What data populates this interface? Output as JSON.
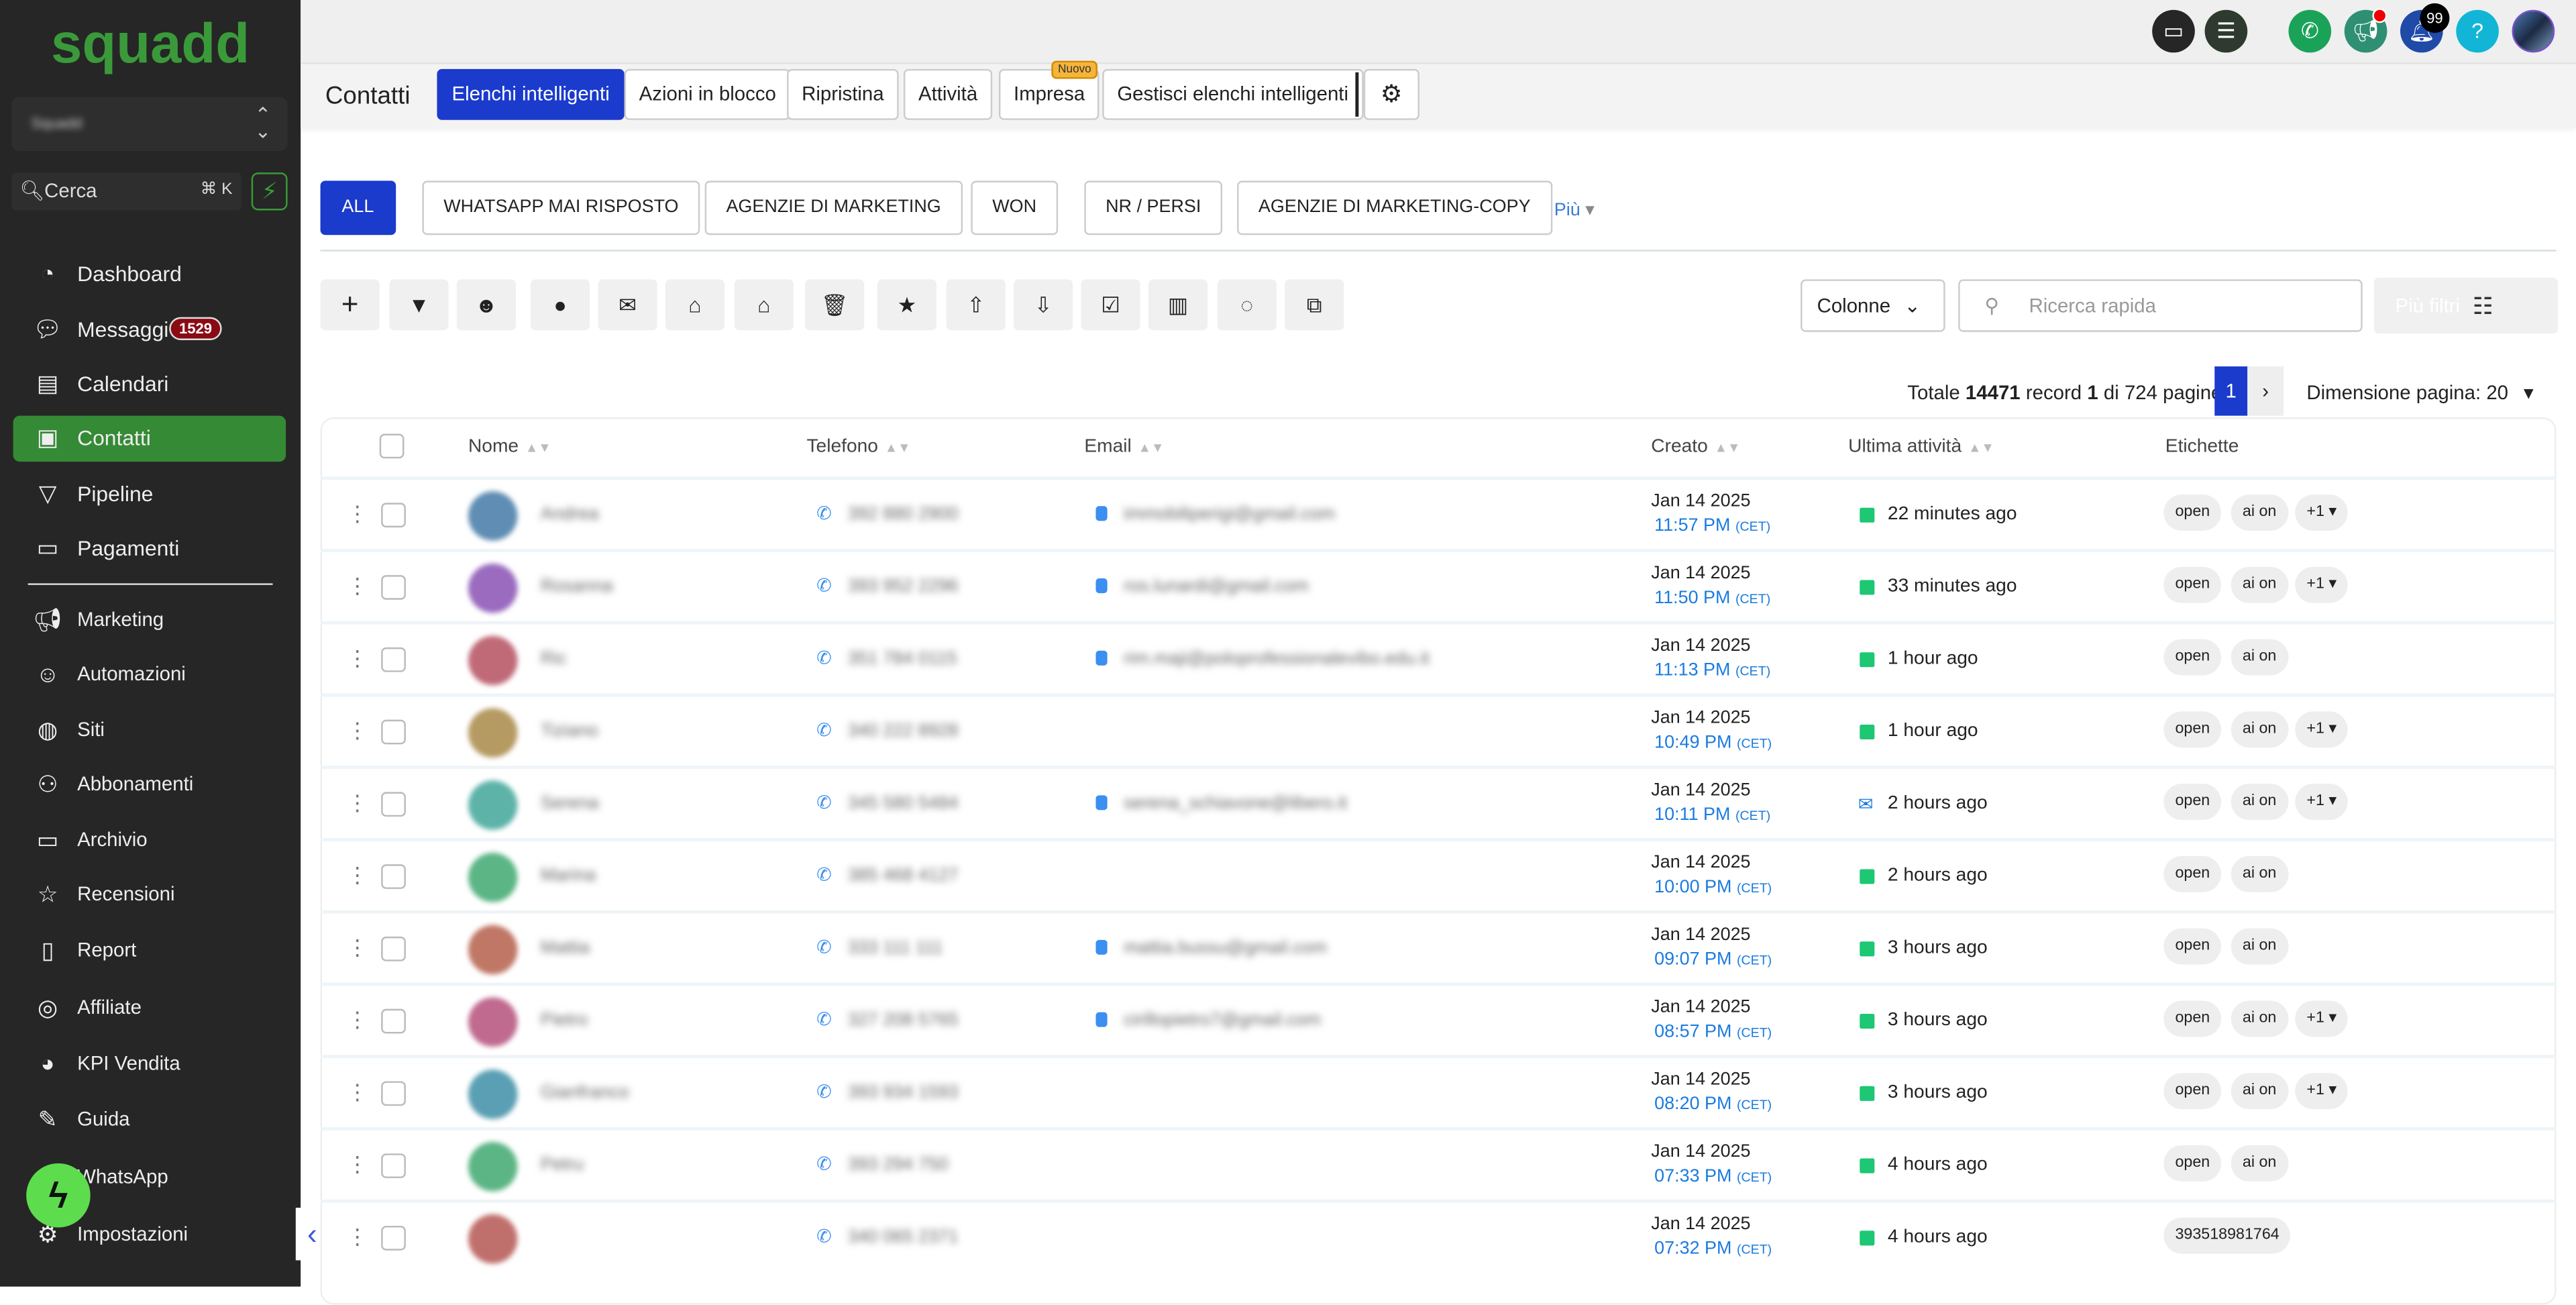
{
  "sidebar": {
    "logo": "squadd",
    "account": "Squadd",
    "search_label": "Cerca",
    "search_shortcut": "⌘ K",
    "items": [
      {
        "label": "Dashboard",
        "icon": "gauge-icon"
      },
      {
        "label": "Messaggi",
        "icon": "chat-bubbles-icon",
        "badge": "1529"
      },
      {
        "label": "Calendari",
        "icon": "calendar-icon"
      },
      {
        "label": "Contatti",
        "icon": "contact-book-icon",
        "active": true
      },
      {
        "label": "Pipeline",
        "icon": "funnel-icon"
      },
      {
        "label": "Pagamenti",
        "icon": "credit-card-icon"
      },
      {
        "label": "Marketing",
        "icon": "megaphone-icon"
      },
      {
        "label": "Automazioni",
        "icon": "robot-icon"
      },
      {
        "label": "Siti",
        "icon": "globe-icon"
      },
      {
        "label": "Abbonamenti",
        "icon": "users-icon"
      },
      {
        "label": "Archivio",
        "icon": "archive-icon"
      },
      {
        "label": "Recensioni",
        "icon": "star-icon"
      },
      {
        "label": "Report",
        "icon": "report-icon"
      },
      {
        "label": "Affiliate",
        "icon": "coins-icon"
      },
      {
        "label": "KPI Vendita",
        "icon": "pie-chart-icon"
      },
      {
        "label": "Guida",
        "icon": "reader-icon"
      },
      {
        "label": "WhatsApp",
        "icon": "whatsapp-icon"
      },
      {
        "label": "Impostazioni",
        "icon": "gear-icon"
      }
    ]
  },
  "topbar": {
    "notifications_count": "99",
    "brand_colors": {
      "green": "#3a9a3a",
      "primary": "#1a3bcc"
    }
  },
  "header": {
    "title": "Contatti",
    "tabs": [
      "Elenchi intelligenti",
      "Azioni in blocco",
      "Ripristina",
      "Attività",
      "Impresa",
      "Gestisci elenchi intelligenti"
    ],
    "new_badge": "Nuovo"
  },
  "smart_lists": {
    "items": [
      "ALL",
      "WHATSAPP MAI RISPOSTO",
      "AGENZIE DI MARKETING",
      "WON",
      "NR / PERSI",
      "AGENZIE DI MARKETING-COPY"
    ],
    "more": "Più"
  },
  "toolbar": {
    "icons": [
      "plus-icon",
      "filter-icon",
      "robot-icon",
      "chat-icon",
      "envelope-icon",
      "tag-add-icon",
      "tag-remove-icon",
      "trash-icon",
      "star-icon",
      "upload-icon",
      "download-icon",
      "inbox-check-icon",
      "building-icon",
      "whatsapp-icon",
      "copy-icon"
    ],
    "columns_label": "Colonne",
    "search_placeholder": "Ricerca rapida",
    "more_filters": "Più filtri"
  },
  "pagination": {
    "prefix": "Totale",
    "total": "14471",
    "mid": "record",
    "page": "1",
    "of": "di 724 pagine",
    "current": "1",
    "page_size_label": "Dimensione pagina: 20"
  },
  "table": {
    "columns": [
      "Nome",
      "Telefono",
      "Email",
      "Creato",
      "Ultima attività",
      "Etichette"
    ],
    "rows": [
      {
        "name": "Andrea",
        "phone": "392 880 2900",
        "email": "immobiliperigi@gmail.com",
        "date": "Jan 14 2025",
        "time": "11:57 PM",
        "tz": "(CET)",
        "activity": "22 minutes ago",
        "activity_icon": "chat",
        "tags": [
          "open",
          "ai on",
          "+1"
        ],
        "color": "#5f8db3"
      },
      {
        "name": "Rosanna",
        "phone": "393 952 2296",
        "email": "ros.lunardi@gmail.com",
        "date": "Jan 14 2025",
        "time": "11:50 PM",
        "tz": "(CET)",
        "activity": "33 minutes ago",
        "activity_icon": "chat",
        "tags": [
          "open",
          "ai on",
          "+1"
        ],
        "color": "#9a6bbf"
      },
      {
        "name": "Ric",
        "phone": "351 784 0115",
        "email": "rim.maji@poloprofessionalevibo.edu.it",
        "date": "Jan 14 2025",
        "time": "11:13 PM",
        "tz": "(CET)",
        "activity": "1 hour ago",
        "activity_icon": "chat",
        "tags": [
          "open",
          "ai on"
        ],
        "color": "#c06a78"
      },
      {
        "name": "Tiziano",
        "phone": "340 222 8928",
        "email": "",
        "date": "Jan 14 2025",
        "time": "10:49 PM",
        "tz": "(CET)",
        "activity": "1 hour ago",
        "activity_icon": "chat",
        "tags": [
          "open",
          "ai on",
          "+1"
        ],
        "color": "#b59a62"
      },
      {
        "name": "Serena",
        "phone": "345 580 5484",
        "email": "serena_schiavone@libero.it",
        "date": "Jan 14 2025",
        "time": "10:11 PM",
        "tz": "(CET)",
        "activity": "2 hours ago",
        "activity_icon": "email",
        "tags": [
          "open",
          "ai on",
          "+1"
        ],
        "color": "#5db3a8"
      },
      {
        "name": "Marina",
        "phone": "385 468 4127",
        "email": "",
        "date": "Jan 14 2025",
        "time": "10:00 PM",
        "tz": "(CET)",
        "activity": "2 hours ago",
        "activity_icon": "chat",
        "tags": [
          "open",
          "ai on"
        ],
        "color": "#5cb585"
      },
      {
        "name": "Mattia",
        "phone": "333 111 111",
        "email": "mattia.bussu@gmail.com",
        "date": "Jan 14 2025",
        "time": "09:07 PM",
        "tz": "(CET)",
        "activity": "3 hours ago",
        "activity_icon": "chat",
        "tags": [
          "open",
          "ai on"
        ],
        "color": "#c07766"
      },
      {
        "name": "Pietro",
        "phone": "327 208 5765",
        "email": "cirillopietro7@gmail.com",
        "date": "Jan 14 2025",
        "time": "08:57 PM",
        "tz": "(CET)",
        "activity": "3 hours ago",
        "activity_icon": "chat",
        "tags": [
          "open",
          "ai on",
          "+1"
        ],
        "color": "#c06a8f"
      },
      {
        "name": "Gianfranco",
        "phone": "393 934 1593",
        "email": "",
        "date": "Jan 14 2025",
        "time": "08:20 PM",
        "tz": "(CET)",
        "activity": "3 hours ago",
        "activity_icon": "chat",
        "tags": [
          "open",
          "ai on",
          "+1"
        ],
        "color": "#5a9fb3"
      },
      {
        "name": "Petru",
        "phone": "393 294 750",
        "email": "",
        "date": "Jan 14 2025",
        "time": "07:33 PM",
        "tz": "(CET)",
        "activity": "4 hours ago",
        "activity_icon": "chat",
        "tags": [
          "open",
          "ai on"
        ],
        "color": "#5cb585"
      },
      {
        "name": "",
        "phone": "340 065 2371",
        "email": "",
        "date": "Jan 14 2025",
        "time": "07:32 PM",
        "tz": "(CET)",
        "activity": "4 hours ago",
        "activity_icon": "chat",
        "tags": [
          "393518981764"
        ],
        "color": "#c0706c"
      }
    ]
  }
}
